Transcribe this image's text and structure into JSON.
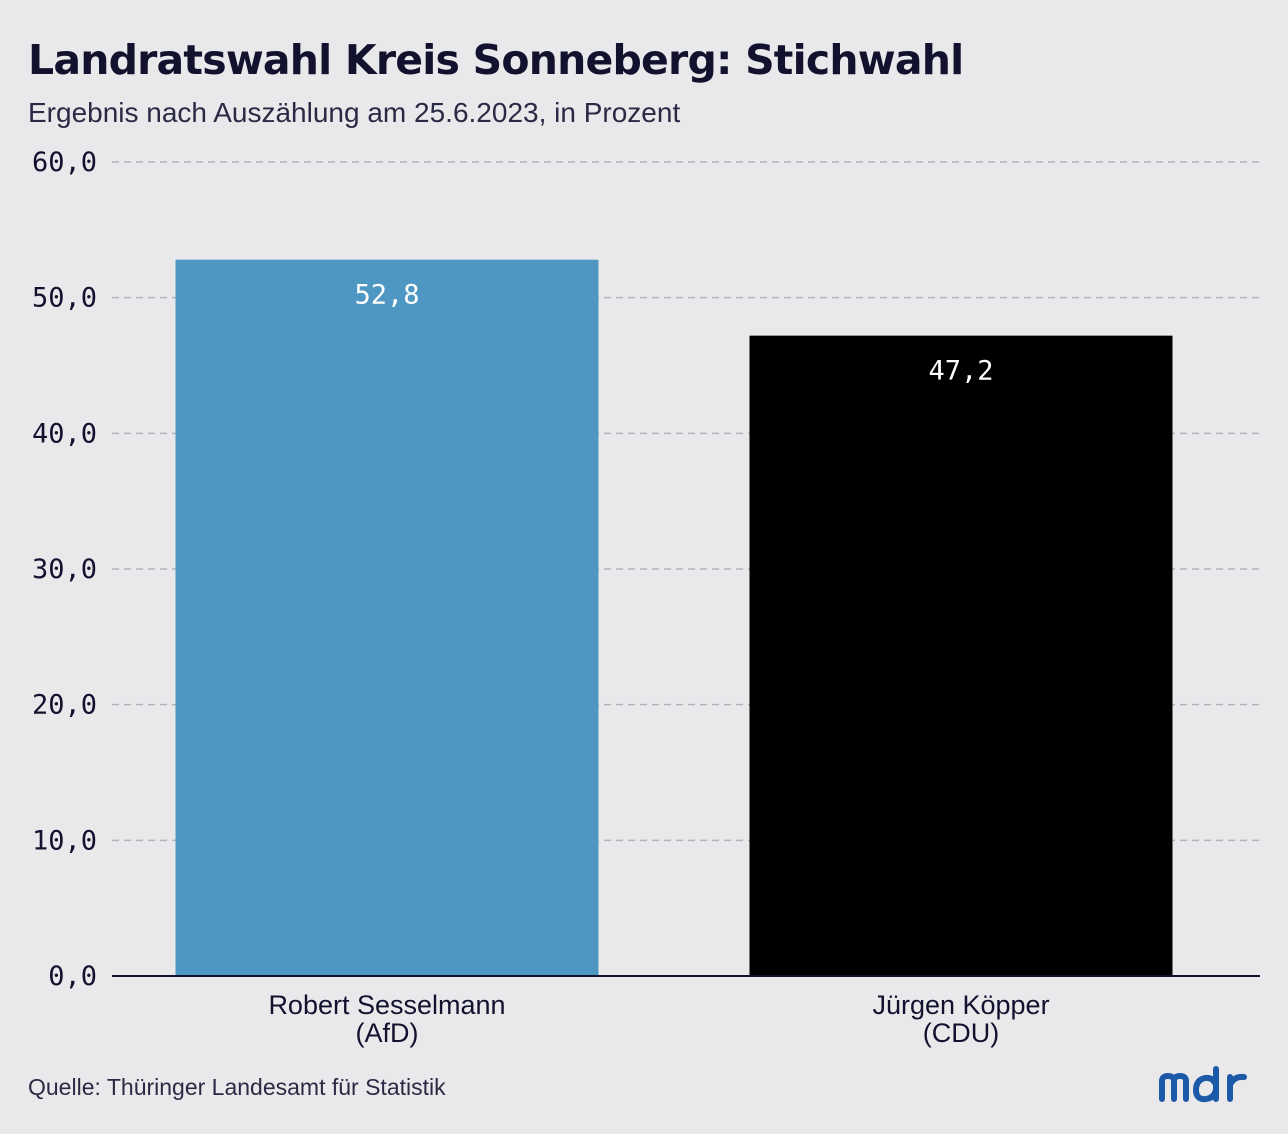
{
  "header": {
    "title": "Landratswahl Kreis Sonneberg: Stichwahl",
    "subtitle": "Ergebnis nach Auszählung am 25.6.2023, in Prozent"
  },
  "footer": {
    "source": "Quelle: Thüringer Landesamt für Statistik",
    "logo_text": "mdr"
  },
  "colors": {
    "background": "#e9e9ec",
    "text": "#12122e",
    "gridline": "#b4b4b8",
    "axis": "#12122e",
    "logo": "#1c5aa8"
  },
  "chart_data": {
    "type": "bar",
    "title": "Landratswahl Kreis Sonneberg: Stichwahl",
    "subtitle": "Ergebnis nach Auszählung am 25.6.2023, in Prozent",
    "xlabel": "",
    "ylabel": "",
    "categories": [
      [
        "Robert Sesselmann",
        "(AfD)"
      ],
      [
        "Jürgen Köpper",
        "(CDU)"
      ]
    ],
    "values": [
      52.8,
      47.2
    ],
    "value_labels": [
      "52,8",
      "47,2"
    ],
    "bar_colors": [
      "#4f97c3",
      "#000000"
    ],
    "ylim": [
      0,
      60
    ],
    "yticks": [
      0,
      10,
      20,
      30,
      40,
      50,
      60
    ],
    "ytick_labels": [
      "0,0",
      "10,0",
      "20,0",
      "30,0",
      "40,0",
      "50,0",
      "60,0"
    ],
    "grid": true,
    "grid_style": "dashed",
    "legend": "none"
  }
}
